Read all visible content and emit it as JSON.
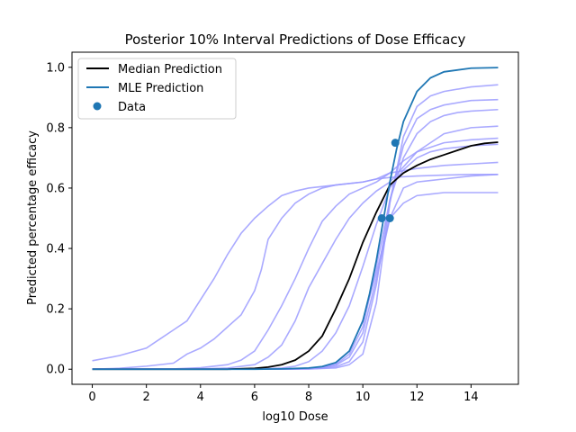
{
  "chart_data": {
    "type": "line",
    "title": "Posterior 10% Interval Predictions of Dose Efficacy",
    "xlabel": "log10 Dose",
    "ylabel": "Predicted percentage efficacy",
    "xlim": [
      -0.75,
      15.75
    ],
    "ylim": [
      -0.05,
      1.05
    ],
    "xticks": [
      0,
      2,
      4,
      6,
      8,
      10,
      12,
      14
    ],
    "yticks": [
      0.0,
      0.2,
      0.4,
      0.6,
      0.8,
      1.0
    ],
    "grid": false,
    "legend_position": "top-left",
    "legend": [
      "Median Prediction",
      "MLE Prediction",
      "Data"
    ],
    "colors": {
      "median": "#000000",
      "mle": "#1f77b4",
      "posterior": "#9b9bff",
      "data": "#1f77b4"
    },
    "series": [
      {
        "name": "Median Prediction",
        "x": [
          0,
          1,
          2,
          3,
          4,
          5,
          6,
          6.5,
          7,
          7.5,
          8,
          8.5,
          9,
          9.5,
          10,
          10.5,
          11,
          11.5,
          12,
          12.5,
          13,
          13.5,
          14,
          14.5,
          15
        ],
        "y": [
          0.0,
          0.0,
          0.0,
          0.0,
          0.0,
          0.0,
          0.003,
          0.007,
          0.015,
          0.03,
          0.06,
          0.11,
          0.2,
          0.3,
          0.42,
          0.52,
          0.61,
          0.65,
          0.675,
          0.695,
          0.71,
          0.725,
          0.74,
          0.748,
          0.752
        ]
      },
      {
        "name": "MLE Prediction",
        "x": [
          0,
          1,
          2,
          3,
          4,
          5,
          6,
          7,
          8,
          8.5,
          9,
          9.5,
          10,
          10.25,
          10.5,
          10.75,
          11,
          11.25,
          11.5,
          12,
          12.5,
          13,
          14,
          15
        ],
        "y": [
          0.0,
          0.0,
          0.0,
          0.0,
          0.0,
          0.0,
          0.0,
          0.001,
          0.004,
          0.009,
          0.022,
          0.06,
          0.16,
          0.25,
          0.36,
          0.49,
          0.62,
          0.73,
          0.82,
          0.92,
          0.965,
          0.985,
          0.997,
          0.999
        ]
      }
    ],
    "posterior_curves": [
      {
        "x": [
          0,
          1,
          2,
          2.5,
          3,
          3.5,
          4,
          4.5,
          5,
          5.5,
          6,
          6.5,
          7,
          7.5,
          8,
          9,
          10,
          10.5,
          11,
          12,
          13,
          14,
          15
        ],
        "y": [
          0.028,
          0.045,
          0.07,
          0.1,
          0.13,
          0.16,
          0.23,
          0.3,
          0.38,
          0.45,
          0.5,
          0.54,
          0.575,
          0.59,
          0.6,
          0.61,
          0.62,
          0.63,
          0.635,
          0.64,
          0.643,
          0.645,
          0.645
        ]
      },
      {
        "x": [
          0,
          1,
          2,
          3,
          3.5,
          4,
          4.5,
          5,
          5.5,
          6,
          6.25,
          6.5,
          7,
          7.5,
          8,
          8.5,
          9,
          10,
          10.5,
          11,
          12,
          13,
          14,
          15
        ],
        "y": [
          0.0,
          0.003,
          0.01,
          0.02,
          0.05,
          0.07,
          0.1,
          0.14,
          0.18,
          0.26,
          0.33,
          0.43,
          0.5,
          0.55,
          0.58,
          0.6,
          0.61,
          0.62,
          0.63,
          0.65,
          0.665,
          0.675,
          0.68,
          0.685
        ]
      },
      {
        "x": [
          0,
          1,
          2,
          3,
          4,
          5,
          5.5,
          6,
          6.5,
          7,
          7.5,
          8,
          8.5,
          9,
          9.5,
          10,
          10.5,
          11,
          11.5,
          12,
          13,
          14,
          15
        ],
        "y": [
          0.0,
          0.0,
          0.0,
          0.001,
          0.005,
          0.015,
          0.03,
          0.06,
          0.13,
          0.21,
          0.3,
          0.4,
          0.49,
          0.54,
          0.58,
          0.6,
          0.62,
          0.65,
          0.69,
          0.72,
          0.75,
          0.76,
          0.765
        ]
      },
      {
        "x": [
          0,
          1,
          2,
          3,
          4,
          5,
          6,
          6.5,
          7,
          7.5,
          8,
          8.5,
          9,
          9.5,
          10,
          10.5,
          11,
          11.5,
          12,
          12.5,
          13,
          14,
          15
        ],
        "y": [
          0.0,
          0.0,
          0.0,
          0.0,
          0.001,
          0.004,
          0.015,
          0.04,
          0.08,
          0.16,
          0.27,
          0.35,
          0.43,
          0.5,
          0.55,
          0.59,
          0.62,
          0.67,
          0.72,
          0.75,
          0.78,
          0.8,
          0.805
        ]
      },
      {
        "x": [
          0,
          1,
          2,
          3,
          4,
          5,
          6,
          7,
          7.5,
          8,
          8.5,
          9,
          9.5,
          10,
          10.5,
          11,
          11.5,
          12,
          12.5,
          13,
          14,
          15
        ],
        "y": [
          0.0,
          0.0,
          0.0,
          0.0,
          0.0,
          0.0,
          0.0,
          0.004,
          0.01,
          0.025,
          0.06,
          0.12,
          0.21,
          0.34,
          0.48,
          0.6,
          0.66,
          0.7,
          0.72,
          0.73,
          0.74,
          0.745
        ]
      },
      {
        "x": [
          0,
          1,
          2,
          3,
          4,
          5,
          6,
          7,
          8,
          8.5,
          9,
          9.5,
          10,
          10.5,
          11,
          11.5,
          12,
          12.5,
          13,
          13.5,
          14,
          15
        ],
        "y": [
          0.0,
          0.0,
          0.0,
          0.0,
          0.0,
          0.0,
          0.0,
          0.0,
          0.003,
          0.008,
          0.02,
          0.06,
          0.16,
          0.32,
          0.5,
          0.6,
          0.62,
          0.625,
          0.63,
          0.635,
          0.64,
          0.645
        ]
      },
      {
        "x": [
          0,
          1,
          2,
          3,
          4,
          5,
          6,
          7,
          8,
          8.5,
          9,
          9.5,
          10,
          10.5,
          11,
          11.5,
          12,
          12.5,
          13,
          14,
          15
        ],
        "y": [
          0.0,
          0.0,
          0.0,
          0.0,
          0.0,
          0.0,
          0.0,
          0.0,
          0.002,
          0.005,
          0.013,
          0.04,
          0.12,
          0.3,
          0.5,
          0.55,
          0.575,
          0.58,
          0.585,
          0.585,
          0.585
        ]
      },
      {
        "x": [
          0,
          1,
          2,
          3,
          4,
          5,
          6,
          7,
          8,
          8.5,
          9,
          9.5,
          10,
          10.5,
          11,
          11.5,
          12,
          12.5,
          13,
          13.5,
          14,
          15
        ],
        "y": [
          0.0,
          0.0,
          0.0,
          0.0,
          0.0,
          0.0,
          0.0,
          0.0,
          0.002,
          0.005,
          0.015,
          0.05,
          0.14,
          0.34,
          0.56,
          0.7,
          0.78,
          0.82,
          0.84,
          0.85,
          0.855,
          0.86
        ]
      },
      {
        "x": [
          0,
          1,
          2,
          3,
          4,
          5,
          6,
          7,
          8,
          8.5,
          9,
          9.5,
          10,
          10.5,
          11,
          11.5,
          12,
          12.5,
          13,
          14,
          15
        ],
        "y": [
          0.0,
          0.0,
          0.0,
          0.0,
          0.0,
          0.0,
          0.0,
          0.0,
          0.001,
          0.003,
          0.008,
          0.025,
          0.09,
          0.28,
          0.56,
          0.74,
          0.83,
          0.86,
          0.875,
          0.89,
          0.893
        ]
      },
      {
        "x": [
          0,
          1,
          2,
          3,
          4,
          5,
          6,
          7,
          8,
          9,
          9.5,
          10,
          10.5,
          11,
          11.5,
          12,
          12.5,
          13,
          14,
          15
        ],
        "y": [
          0.0,
          0.0,
          0.0,
          0.0,
          0.0,
          0.0,
          0.0,
          0.0,
          0.001,
          0.004,
          0.015,
          0.05,
          0.22,
          0.55,
          0.77,
          0.87,
          0.905,
          0.92,
          0.935,
          0.942
        ]
      }
    ],
    "data_points": [
      {
        "x": 10.7,
        "y": 0.5
      },
      {
        "x": 11.0,
        "y": 0.5
      },
      {
        "x": 11.2,
        "y": 0.75
      }
    ]
  }
}
